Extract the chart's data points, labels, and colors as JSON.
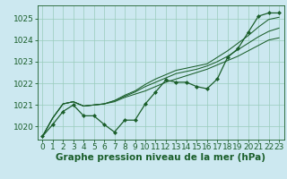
{
  "title": "Graphe pression niveau de la mer (hPa)",
  "bg_color": "#cce8f0",
  "grid_color": "#99ccbb",
  "line_color": "#1a5e2a",
  "xlim": [
    -0.5,
    23.5
  ],
  "ylim": [
    1019.4,
    1025.6
  ],
  "yticks": [
    1020,
    1021,
    1022,
    1023,
    1024,
    1025
  ],
  "xticks": [
    0,
    1,
    2,
    3,
    4,
    5,
    6,
    7,
    8,
    9,
    10,
    11,
    12,
    13,
    14,
    15,
    16,
    17,
    18,
    19,
    20,
    21,
    22,
    23
  ],
  "series": [
    [
      1019.55,
      1020.1,
      1020.7,
      1021.0,
      1020.5,
      1020.5,
      1020.1,
      1019.75,
      1020.3,
      1020.3,
      1021.05,
      1021.6,
      1022.15,
      1022.05,
      1022.05,
      1021.85,
      1021.75,
      1022.2,
      1023.2,
      1023.6,
      1024.35,
      1025.1,
      1025.25,
      1025.25
    ],
    [
      1019.55,
      1020.4,
      1021.05,
      1021.15,
      1020.95,
      1021.0,
      1021.05,
      1021.15,
      1021.35,
      1021.5,
      1021.65,
      1021.85,
      1022.05,
      1022.2,
      1022.35,
      1022.5,
      1022.65,
      1022.85,
      1023.05,
      1023.25,
      1023.5,
      1023.75,
      1024.0,
      1024.1
    ],
    [
      1019.55,
      1020.4,
      1021.05,
      1021.15,
      1020.95,
      1021.0,
      1021.05,
      1021.2,
      1021.4,
      1021.6,
      1021.85,
      1022.05,
      1022.25,
      1022.45,
      1022.55,
      1022.65,
      1022.8,
      1023.0,
      1023.25,
      1023.55,
      1023.85,
      1024.15,
      1024.4,
      1024.55
    ],
    [
      1019.55,
      1020.4,
      1021.05,
      1021.15,
      1020.95,
      1021.0,
      1021.05,
      1021.2,
      1021.45,
      1021.65,
      1021.95,
      1022.2,
      1022.4,
      1022.6,
      1022.7,
      1022.8,
      1022.9,
      1023.2,
      1023.5,
      1023.85,
      1024.2,
      1024.6,
      1024.95,
      1025.05
    ]
  ],
  "xlabel_fontsize": 7.5,
  "tick_fontsize": 6.5
}
